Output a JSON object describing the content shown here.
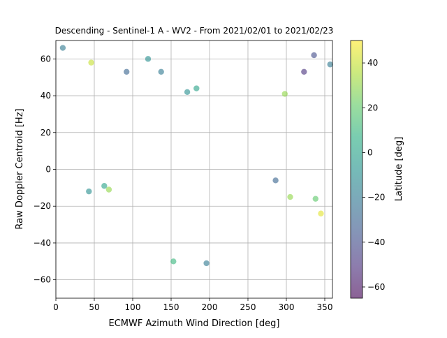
{
  "chart_data": {
    "type": "scatter",
    "title": "Descending - Sentinel-1 A - WV2 - From 2021/02/01 to 2021/02/23",
    "xlabel": "ECMWF Azimuth Wind Direction [deg]",
    "ylabel": "Raw Doppler Centroid [Hz]",
    "xlim": [
      0,
      360
    ],
    "ylim": [
      -70,
      70
    ],
    "xticks": [
      "0",
      "50",
      "100",
      "150",
      "200",
      "250",
      "300",
      "350"
    ],
    "yticks": [
      "−60",
      "−40",
      "−20",
      "0",
      "20",
      "40",
      "60"
    ],
    "grid": true,
    "colorbar": {
      "label": "Latitude [deg]",
      "range": [
        -65,
        50
      ],
      "ticks": [
        "−60",
        "−40",
        "−20",
        "0",
        "20",
        "40"
      ],
      "colormap": "viridis",
      "alpha": 0.6
    },
    "points": [
      {
        "x": 9,
        "y": 66,
        "lat": -20
      },
      {
        "x": 120,
        "y": 60,
        "lat": -10
      },
      {
        "x": 137,
        "y": 53,
        "lat": -20
      },
      {
        "x": 336,
        "y": 62,
        "lat": -40
      },
      {
        "x": 323,
        "y": 53,
        "lat": -50
      },
      {
        "x": 357,
        "y": 57,
        "lat": -20
      },
      {
        "x": 46,
        "y": 58,
        "lat": 40
      },
      {
        "x": 92,
        "y": 53,
        "lat": -30
      },
      {
        "x": 171,
        "y": 42,
        "lat": -10
      },
      {
        "x": 183,
        "y": 44,
        "lat": 0
      },
      {
        "x": 196,
        "y": -51,
        "lat": -20
      },
      {
        "x": 153,
        "y": -50,
        "lat": 10
      },
      {
        "x": 345,
        "y": -24,
        "lat": 45
      },
      {
        "x": 338,
        "y": -16,
        "lat": 20
      },
      {
        "x": 43,
        "y": -12,
        "lat": -10
      },
      {
        "x": 69,
        "y": -11,
        "lat": 30
      },
      {
        "x": 63,
        "y": -9,
        "lat": 0
      },
      {
        "x": 298,
        "y": 41,
        "lat": 30
      },
      {
        "x": 305,
        "y": -15,
        "lat": 30
      },
      {
        "x": 286,
        "y": -6,
        "lat": -30
      }
    ]
  }
}
